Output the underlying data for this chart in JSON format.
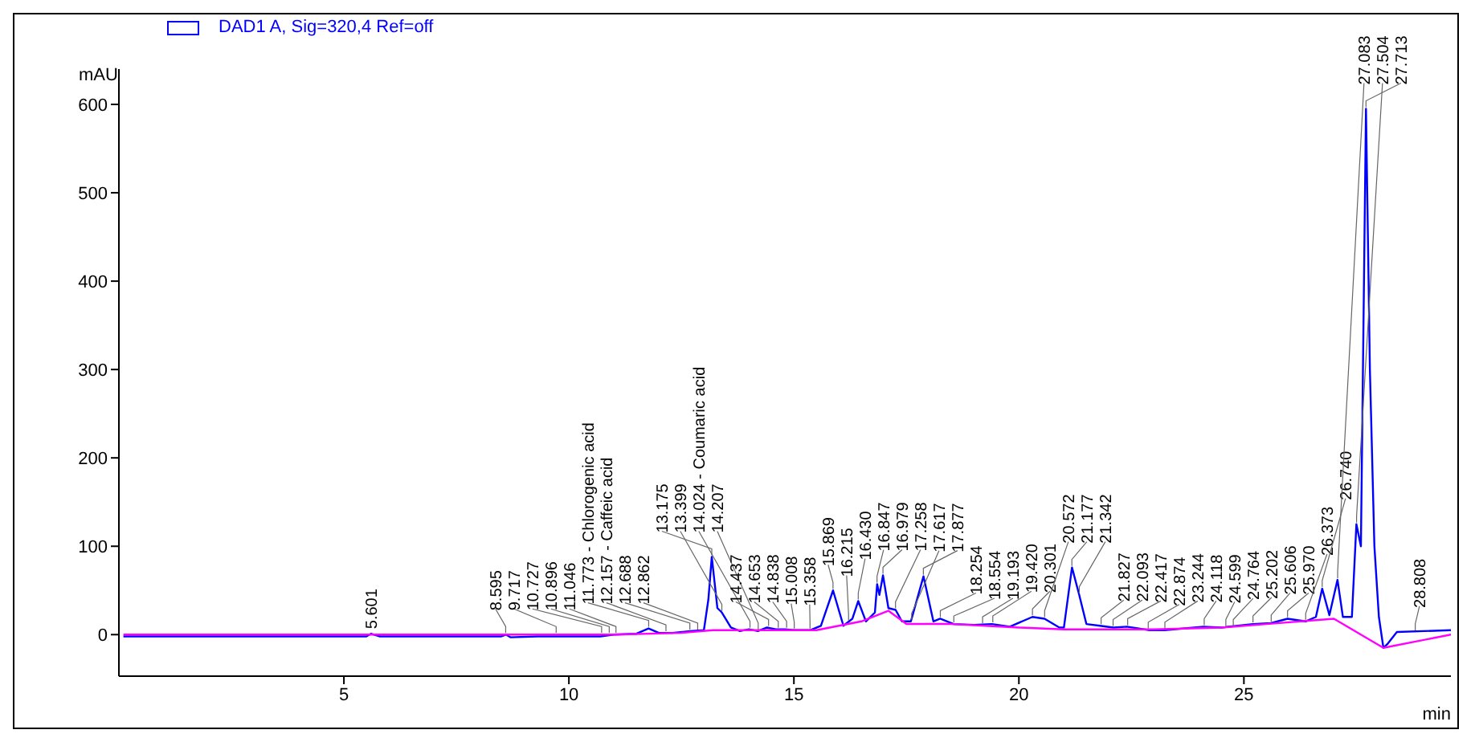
{
  "chart_data": {
    "type": "line",
    "ylabel": "mAU",
    "xlabel": "min",
    "legend": "top",
    "marker": "none",
    "line_style": "solid",
    "xlim": [
      0,
      29.6
    ],
    "xticks": [
      5,
      10,
      15,
      20,
      25
    ],
    "ylim": [
      -47,
      640
    ],
    "yticks": [
      0,
      100,
      200,
      300,
      400,
      500,
      600
    ],
    "series": [
      {
        "name": "DAD1 A, Sig=320,4 Ref=off",
        "color": "#0000ff",
        "x": [
          0.1,
          5.5,
          5.6,
          5.8,
          8.5,
          8.6,
          8.7,
          9.3,
          10.7,
          11.0,
          11.5,
          11.77,
          12.0,
          12.3,
          12.7,
          13.0,
          13.1,
          13.175,
          13.3,
          13.4,
          13.6,
          13.8,
          14.0,
          14.2,
          14.4,
          14.6,
          14.8,
          15.0,
          15.36,
          15.6,
          15.87,
          16.1,
          16.3,
          16.43,
          16.6,
          16.8,
          16.85,
          16.9,
          16.98,
          17.1,
          17.26,
          17.4,
          17.6,
          17.88,
          18.1,
          18.25,
          18.55,
          19.0,
          19.4,
          19.8,
          20.3,
          20.57,
          20.9,
          21.0,
          21.18,
          21.34,
          21.5,
          21.8,
          22.1,
          22.4,
          22.9,
          23.24,
          24.1,
          24.5,
          25.2,
          25.6,
          25.97,
          26.37,
          26.6,
          26.74,
          26.9,
          27.08,
          27.2,
          27.4,
          27.5,
          27.6,
          27.713,
          27.8,
          27.9,
          28.0,
          28.1,
          28.2,
          28.4,
          29.6
        ],
        "values": [
          -2,
          -2,
          1,
          -2,
          -2,
          0,
          -3,
          -2,
          -2,
          0,
          1,
          7,
          2,
          2,
          4,
          5,
          40,
          88,
          30,
          25,
          8,
          4,
          6,
          4,
          8,
          6,
          6,
          5,
          5,
          10,
          50,
          10,
          18,
          38,
          15,
          25,
          57,
          45,
          67,
          30,
          28,
          15,
          15,
          66,
          15,
          18,
          12,
          11,
          12,
          9,
          20,
          18,
          8,
          8,
          76,
          45,
          12,
          10,
          8,
          9,
          5,
          5,
          9,
          8,
          12,
          13,
          18,
          15,
          20,
          52,
          22,
          62,
          20,
          20,
          125,
          100,
          595,
          300,
          100,
          20,
          -15,
          -10,
          3,
          5
        ]
      },
      {
        "color": "#ff00ff",
        "x": [
          0.1,
          11.0,
          12.5,
          13.2,
          15.5,
          16.5,
          17.1,
          17.5,
          18.5,
          20.0,
          21.0,
          23.0,
          24.5,
          25.5,
          27.0,
          28.1,
          29.6
        ],
        "values": [
          0,
          0,
          2,
          5,
          5,
          15,
          27,
          12,
          12,
          8,
          6,
          6,
          8,
          12,
          18,
          -15,
          0
        ]
      }
    ],
    "annotations": [
      {
        "text": "5.601",
        "x": 5.601,
        "y": 1
      },
      {
        "text": "8.595",
        "x": 8.595,
        "y": 0
      },
      {
        "text": "9.717",
        "x": 9.717,
        "y": 0
      },
      {
        "text": "10.727",
        "x": 10.727,
        "y": 0
      },
      {
        "text": "10.896",
        "x": 10.896,
        "y": 0
      },
      {
        "text": "11.046",
        "x": 11.046,
        "y": 0
      },
      {
        "text": "11.773 - Chlorogenic acid",
        "x": 11.773,
        "y": 7
      },
      {
        "text": "12.157 - Caffeic acid",
        "x": 12.157,
        "y": 2
      },
      {
        "text": "12.688",
        "x": 12.688,
        "y": 4
      },
      {
        "text": "12.862",
        "x": 12.862,
        "y": 4
      },
      {
        "text": "13.175",
        "x": 13.175,
        "y": 88
      },
      {
        "text": "13.399",
        "x": 13.399,
        "y": 25
      },
      {
        "text": "14.024 - Coumaric acid",
        "x": 14.024,
        "y": 6
      },
      {
        "text": "14.207",
        "x": 14.207,
        "y": 4
      },
      {
        "text": "14.437",
        "x": 14.437,
        "y": 8
      },
      {
        "text": "14.653",
        "x": 14.653,
        "y": 6
      },
      {
        "text": "14.838",
        "x": 14.838,
        "y": 6
      },
      {
        "text": "15.008",
        "x": 15.008,
        "y": 5
      },
      {
        "text": "15.358",
        "x": 15.358,
        "y": 5
      },
      {
        "text": "15.869",
        "x": 15.869,
        "y": 50
      },
      {
        "text": "16.215",
        "x": 16.215,
        "y": 14
      },
      {
        "text": "16.430",
        "x": 16.43,
        "y": 38
      },
      {
        "text": "16.847",
        "x": 16.847,
        "y": 57
      },
      {
        "text": "16.979",
        "x": 16.979,
        "y": 67
      },
      {
        "text": "17.258",
        "x": 17.258,
        "y": 28
      },
      {
        "text": "17.617",
        "x": 17.617,
        "y": 15
      },
      {
        "text": "17.877",
        "x": 17.877,
        "y": 66
      },
      {
        "text": "18.254",
        "x": 18.254,
        "y": 18
      },
      {
        "text": "18.554",
        "x": 18.554,
        "y": 12
      },
      {
        "text": "19.193",
        "x": 19.193,
        "y": 11
      },
      {
        "text": "19.420",
        "x": 19.42,
        "y": 12
      },
      {
        "text": "20.301",
        "x": 20.301,
        "y": 20
      },
      {
        "text": "20.572",
        "x": 20.572,
        "y": 18
      },
      {
        "text": "21.177",
        "x": 21.177,
        "y": 76
      },
      {
        "text": "21.342",
        "x": 21.342,
        "y": 45
      },
      {
        "text": "21.827",
        "x": 21.827,
        "y": 10
      },
      {
        "text": "22.093",
        "x": 22.093,
        "y": 8
      },
      {
        "text": "22.417",
        "x": 22.417,
        "y": 9
      },
      {
        "text": "22.874",
        "x": 22.874,
        "y": 5
      },
      {
        "text": "23.244",
        "x": 23.244,
        "y": 5
      },
      {
        "text": "24.118",
        "x": 24.118,
        "y": 9
      },
      {
        "text": "24.599",
        "x": 24.599,
        "y": 8
      },
      {
        "text": "24.764",
        "x": 24.764,
        "y": 8
      },
      {
        "text": "25.202",
        "x": 25.202,
        "y": 12
      },
      {
        "text": "25.606",
        "x": 25.606,
        "y": 13
      },
      {
        "text": "25.970",
        "x": 25.97,
        "y": 18
      },
      {
        "text": "26.373",
        "x": 26.373,
        "y": 15
      },
      {
        "text": "26.740",
        "x": 26.74,
        "y": 52
      },
      {
        "text": "27.083",
        "x": 27.083,
        "y": 62
      },
      {
        "text": "27.504",
        "x": 27.504,
        "y": 125
      },
      {
        "text": "27.713",
        "x": 27.713,
        "y": 595
      },
      {
        "text": "28.808",
        "x": 28.808,
        "y": 3
      }
    ]
  }
}
